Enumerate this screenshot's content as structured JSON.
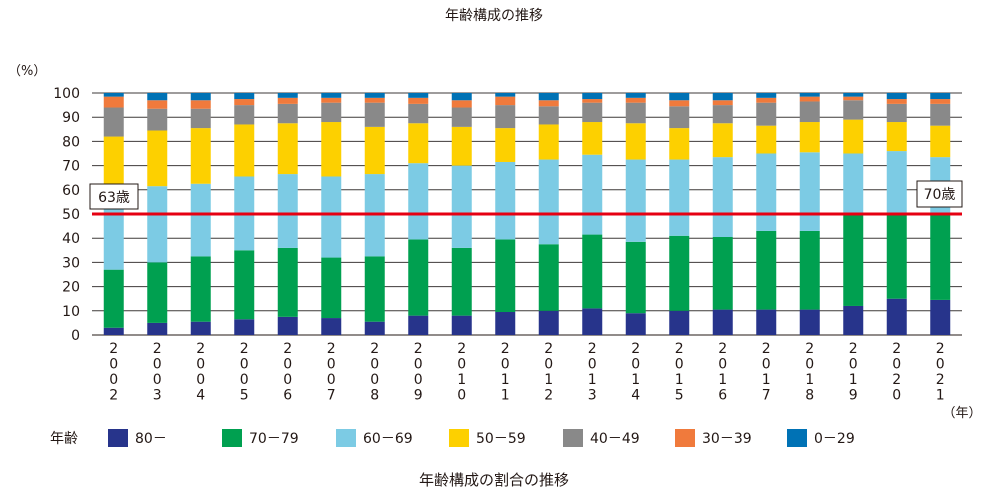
{
  "chart_data": {
    "type": "bar",
    "stacked": true,
    "title": "年齢構成の推移",
    "caption": "年齢構成の割合の推移",
    "ylabel": "（%）",
    "xlabel": "（年）",
    "ylim": [
      0,
      100
    ],
    "yticks": [
      "0",
      "10",
      "20",
      "30",
      "40",
      "50",
      "60",
      "70",
      "80",
      "90",
      "100"
    ],
    "grid": true,
    "legend_title": "年齢",
    "legend_position": "bottom",
    "categories": [
      "2002",
      "2003",
      "2004",
      "2005",
      "2006",
      "2007",
      "2008",
      "2009",
      "2010",
      "2011",
      "2012",
      "2013",
      "2014",
      "2015",
      "2016",
      "2017",
      "2018",
      "2019",
      "2020",
      "2021"
    ],
    "series": [
      {
        "name": "80－",
        "color": "#27348b",
        "values": [
          3,
          5,
          5.5,
          6.5,
          7.5,
          7,
          5.5,
          8,
          8,
          9.5,
          10,
          11,
          9,
          10,
          10.5,
          10.5,
          10.5,
          12,
          15,
          14.5
        ]
      },
      {
        "name": "70－79",
        "color": "#00a050",
        "values": [
          24,
          25,
          27,
          28.5,
          28.5,
          25,
          27,
          31.5,
          28,
          30,
          27.5,
          30.5,
          29.5,
          31,
          30,
          32.5,
          32.5,
          37.5,
          35,
          35.5
        ]
      },
      {
        "name": "60－69",
        "color": "#7ccbe4",
        "values": [
          28.5,
          31.5,
          30,
          30.5,
          30.5,
          33.5,
          34,
          31.5,
          34,
          32,
          35,
          33,
          34,
          31.5,
          33,
          32,
          32.5,
          25.5,
          26,
          23.5
        ]
      },
      {
        "name": "50－59",
        "color": "#fdd000",
        "values": [
          26.5,
          23,
          23,
          21.5,
          21,
          22.5,
          19.5,
          16.5,
          16,
          14,
          14.5,
          13.5,
          15,
          13,
          14,
          11.5,
          12.5,
          14,
          12,
          13
        ]
      },
      {
        "name": "40－49",
        "color": "#898989",
        "values": [
          12,
          9,
          8,
          8,
          8,
          8,
          10,
          8,
          8,
          9.5,
          7.5,
          8,
          8.5,
          9,
          7.5,
          9.5,
          8.5,
          8,
          7.5,
          9
        ]
      },
      {
        "name": "30－39",
        "color": "#f07a3c",
        "values": [
          4.5,
          3.5,
          3.5,
          2.5,
          2.5,
          2,
          2,
          2.5,
          3,
          3.5,
          2.5,
          1.5,
          2,
          2.5,
          2,
          2,
          2,
          1.5,
          2,
          2
        ]
      },
      {
        "name": "0－29",
        "color": "#0072b5",
        "values": [
          1.5,
          3,
          3,
          2.5,
          2,
          2,
          2,
          2,
          3,
          1.5,
          3,
          2.5,
          2,
          3,
          3,
          2,
          1.5,
          1.5,
          2.5,
          2.5
        ]
      }
    ],
    "reference_line": {
      "value": 50,
      "color": "#e60012"
    },
    "annotations": [
      "63歳",
      "70歳"
    ]
  }
}
